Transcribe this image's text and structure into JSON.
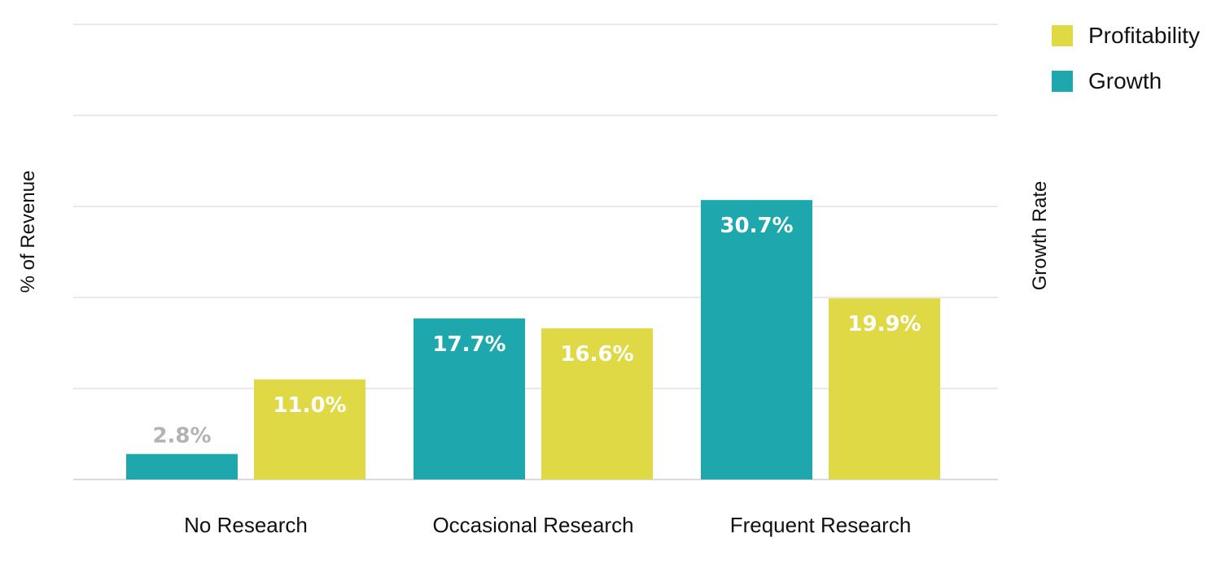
{
  "chart_data": {
    "type": "bar",
    "categories": [
      "No Research",
      "Occasional Research",
      "Frequent Research"
    ],
    "series": [
      {
        "name": "Growth",
        "color": "#1fa7ae",
        "values": [
          2.8,
          17.7,
          30.7
        ],
        "labels": [
          "2.8%",
          "17.7%",
          "30.7%"
        ]
      },
      {
        "name": "Profitability",
        "color": "#dfd945",
        "values": [
          11.0,
          16.6,
          19.9
        ],
        "labels": [
          "11.0%",
          "16.6%",
          "19.9%"
        ]
      }
    ],
    "ylabel_left": "% of Revenue",
    "ylabel_right": "Growth Rate",
    "ylim": [
      0,
      50
    ],
    "grid": true,
    "legend": {
      "position": "top-right",
      "order": [
        "Profitability",
        "Growth"
      ]
    },
    "label_colors": {
      "inside": "#ffffff",
      "outside": "#b3b3b3"
    }
  }
}
